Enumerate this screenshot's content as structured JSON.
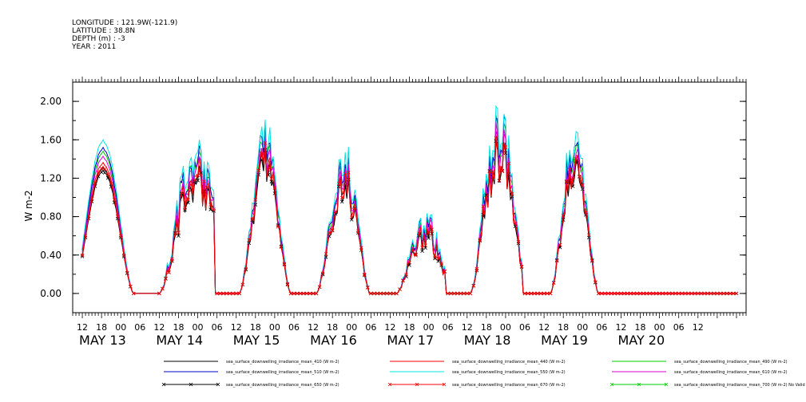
{
  "header": {
    "lines": [
      "LONGITUDE : 121.9W(-121.9)",
      "LATITUDE : 38.8N",
      "DEPTH (m) : -3",
      "YEAR : 2011"
    ]
  },
  "chart_data": {
    "type": "line",
    "title": "",
    "xlabel": "",
    "ylabel": "W m-2",
    "ylim": [
      -0.2,
      2.2
    ],
    "yticks": [
      0.0,
      0.4,
      0.8,
      1.2,
      1.6,
      2.0
    ],
    "ytick_labels": [
      "0.00",
      "0.40",
      "0.80",
      "1.20",
      "1.60",
      "2.00"
    ],
    "x_unit": "hours since 2011-05-13 12:00",
    "xlim": [
      -3,
      207
    ],
    "hour_tick_labels": [
      "12",
      "18",
      "00",
      "06",
      "12",
      "18",
      "00",
      "06",
      "12",
      "18",
      "00",
      "06",
      "12",
      "18",
      "00",
      "06",
      "12",
      "18",
      "00",
      "06",
      "12",
      "18",
      "00",
      "06",
      "12",
      "18",
      "00",
      "06",
      "12",
      "18",
      "00",
      "06",
      "12"
    ],
    "day_labels": [
      {
        "label": "MAY 13",
        "hour": 0
      },
      {
        "label": "MAY 14",
        "hour": 24
      },
      {
        "label": "MAY 15",
        "hour": 48
      },
      {
        "label": "MAY 16",
        "hour": 72
      },
      {
        "label": "MAY 17",
        "hour": 96
      },
      {
        "label": "MAY 18",
        "hour": 120
      },
      {
        "label": "MAY 19",
        "hour": 144
      },
      {
        "label": "MAY 20",
        "hour": 168
      }
    ],
    "grid": false,
    "legend_position": "bottom",
    "days": [
      {
        "start": 0,
        "end": 16,
        "peak": 6.5,
        "amp": 1.3,
        "noise": 0.02
      },
      {
        "start": 24,
        "end": 41,
        "peak": 35.5,
        "amp": 1.2,
        "noise": 0.3
      },
      {
        "start": 49,
        "end": 65,
        "peak": 57.0,
        "amp": 1.3,
        "noise": 0.2
      },
      {
        "start": 73,
        "end": 89,
        "peak": 81.5,
        "amp": 1.1,
        "noise": 0.25
      },
      {
        "start": 98,
        "end": 113,
        "peak": 107.0,
        "amp": 0.6,
        "noise": 0.35
      },
      {
        "start": 121,
        "end": 137,
        "peak": 130.0,
        "amp": 1.4,
        "noise": 0.35
      },
      {
        "start": 146,
        "end": 161,
        "peak": 153.5,
        "amp": 1.3,
        "noise": 0.2
      }
    ],
    "series": [
      {
        "name": "sea_surface_downwelling_irradiance_mean_410 (W m-2)",
        "color": "#000000",
        "scale": 1.0,
        "marker": "none"
      },
      {
        "name": "sea_surface_downwelling_irradiance_mean_440 (W m-2)",
        "color": "#ff0000",
        "scale": 1.04,
        "marker": "none"
      },
      {
        "name": "sea_surface_downwelling_irradiance_mean_490 (W m-2)",
        "color": "#00cc00",
        "scale": 1.13,
        "marker": "none"
      },
      {
        "name": "sea_surface_downwelling_irradiance_mean_510 (W m-2)",
        "color": "#0000cc",
        "scale": 1.16,
        "marker": "none"
      },
      {
        "name": "sea_surface_downwelling_irradiance_mean_550 (W m-2)",
        "color": "#00e5e5",
        "scale": 1.22,
        "marker": "none"
      },
      {
        "name": "sea_surface_downwelling_irradiance_mean_610 (W m-2)",
        "color": "#dd00dd",
        "scale": 1.09,
        "marker": "none"
      },
      {
        "name": "sea_surface_downwelling_irradiance_mean_650 (W m-2)",
        "color": "#000000",
        "scale": 0.98,
        "marker": "x"
      },
      {
        "name": "sea_surface_downwelling_irradiance_mean_670 (W m-2)",
        "color": "#ff0000",
        "scale": 1.01,
        "marker": "x"
      },
      {
        "name": "sea_surface_downwelling_irradiance_mean_700 (W m-2) No Valid Data",
        "color": "#00cc00",
        "scale": 0,
        "marker": "x"
      }
    ]
  }
}
